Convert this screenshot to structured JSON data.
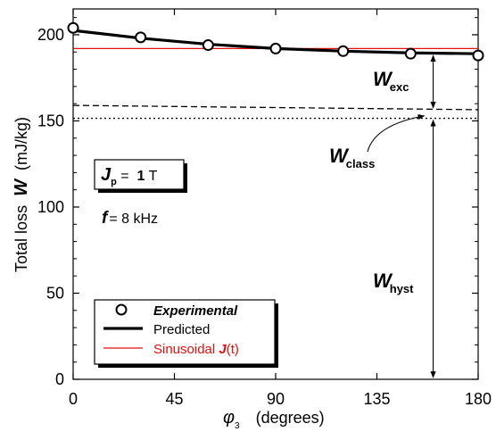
{
  "chart_data": {
    "type": "line",
    "xlabel_symbol": "φ",
    "xlabel_sub": "3",
    "xlabel_text": "(degrees)",
    "ylabel_text": "Total loss",
    "ylabel_symbol": "W",
    "ylabel_unit": "(mJ/kg)",
    "xlim": [
      0,
      180
    ],
    "ylim": [
      0,
      215
    ],
    "xticks": [
      "0",
      "45",
      "90",
      "135",
      "180"
    ],
    "yticks": [
      "0",
      "50",
      "100",
      "150",
      "200"
    ],
    "grid": false,
    "legend_position": "bottom-left",
    "series": [
      {
        "name": "Experimental",
        "style": "open-circle-markers",
        "color": "#000000",
        "x": [
          0,
          30,
          60,
          90,
          120,
          150,
          180
        ],
        "y": [
          204,
          198.5,
          194,
          192,
          190.5,
          189,
          188
        ]
      },
      {
        "name": "Predicted",
        "style": "thick-line",
        "color": "#000000",
        "x": [
          0,
          30,
          60,
          90,
          120,
          150,
          180
        ],
        "y": [
          202.5,
          198,
          194.5,
          192,
          190.5,
          189.5,
          189
        ]
      },
      {
        "name": "Sinusoidal J(t)",
        "style": "thin-line",
        "color": "#e01010",
        "x": [
          0,
          180
        ],
        "y": [
          192,
          192
        ]
      },
      {
        "name": "W_class level",
        "style": "dashed",
        "color": "#000000",
        "x": [
          0,
          180
        ],
        "y": [
          159,
          156.5
        ]
      },
      {
        "name": "W_hyst level",
        "style": "dotted",
        "color": "#000000",
        "x": [
          0,
          180
        ],
        "y": [
          151.5,
          151.5
        ]
      }
    ],
    "legend": [
      {
        "label": "Experimental",
        "marker": "circle",
        "color": "#000000"
      },
      {
        "label": "Predicted",
        "marker": "thick-line",
        "color": "#000000"
      },
      {
        "label": "Sinusoidal ",
        "symbol": "J",
        "suffix": "(t)",
        "marker": "thin-line",
        "color": "#e01010"
      }
    ],
    "annotations": {
      "jp": {
        "symbol": "J",
        "sub": "p",
        "eq": " =  ",
        "value": "1",
        "unit": " T"
      },
      "freq": {
        "symbol": "f",
        "text": "=  8 kHz"
      },
      "w_exc": {
        "symbol": "W",
        "sub": "exc"
      },
      "w_class": {
        "symbol": "W",
        "sub": "class"
      },
      "w_hyst": {
        "symbol": "W",
        "sub": "hyst"
      }
    },
    "arrows": {
      "x": 160,
      "exc_range": [
        189,
        156.5
      ],
      "hyst_range": [
        151.5,
        0
      ]
    }
  }
}
